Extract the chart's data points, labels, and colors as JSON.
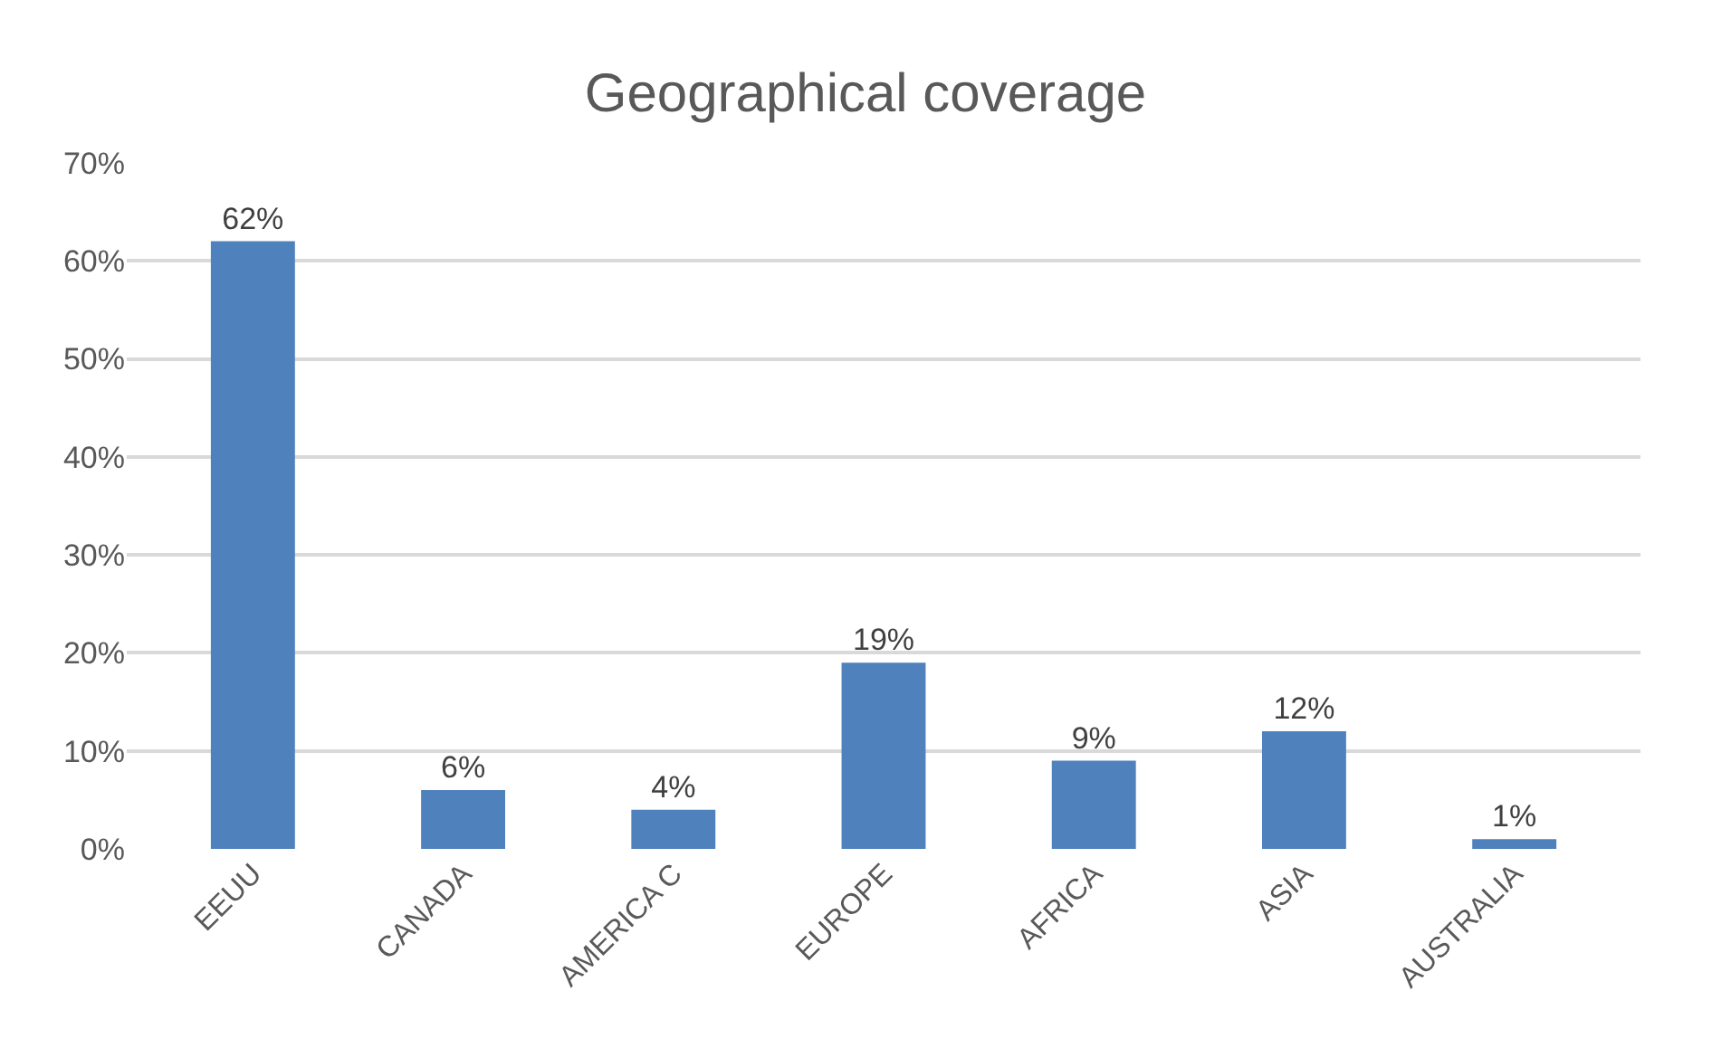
{
  "chart_data": {
    "type": "bar",
    "title": "Geographical coverage",
    "categories": [
      "EEUU",
      "CANADA",
      "AMERICA C",
      "EUROPE",
      "AFRICA",
      "ASIA",
      "AUSTRALIA"
    ],
    "values": [
      62,
      6,
      4,
      19,
      9,
      12,
      1
    ],
    "value_labels": [
      "62%",
      "6%",
      "4%",
      "19%",
      "9%",
      "12%",
      "1%"
    ],
    "color": "#4f81bd",
    "ylim": [
      0,
      70
    ],
    "yticks": [
      {
        "value": 0,
        "label": "0%"
      },
      {
        "value": 10,
        "label": "10%"
      },
      {
        "value": 20,
        "label": "20%"
      },
      {
        "value": 30,
        "label": "30%"
      },
      {
        "value": 40,
        "label": "40%"
      },
      {
        "value": 50,
        "label": "50%"
      },
      {
        "value": 60,
        "label": "60%"
      },
      {
        "value": 70,
        "label": "70%"
      }
    ],
    "grid": "y",
    "legend": false
  }
}
